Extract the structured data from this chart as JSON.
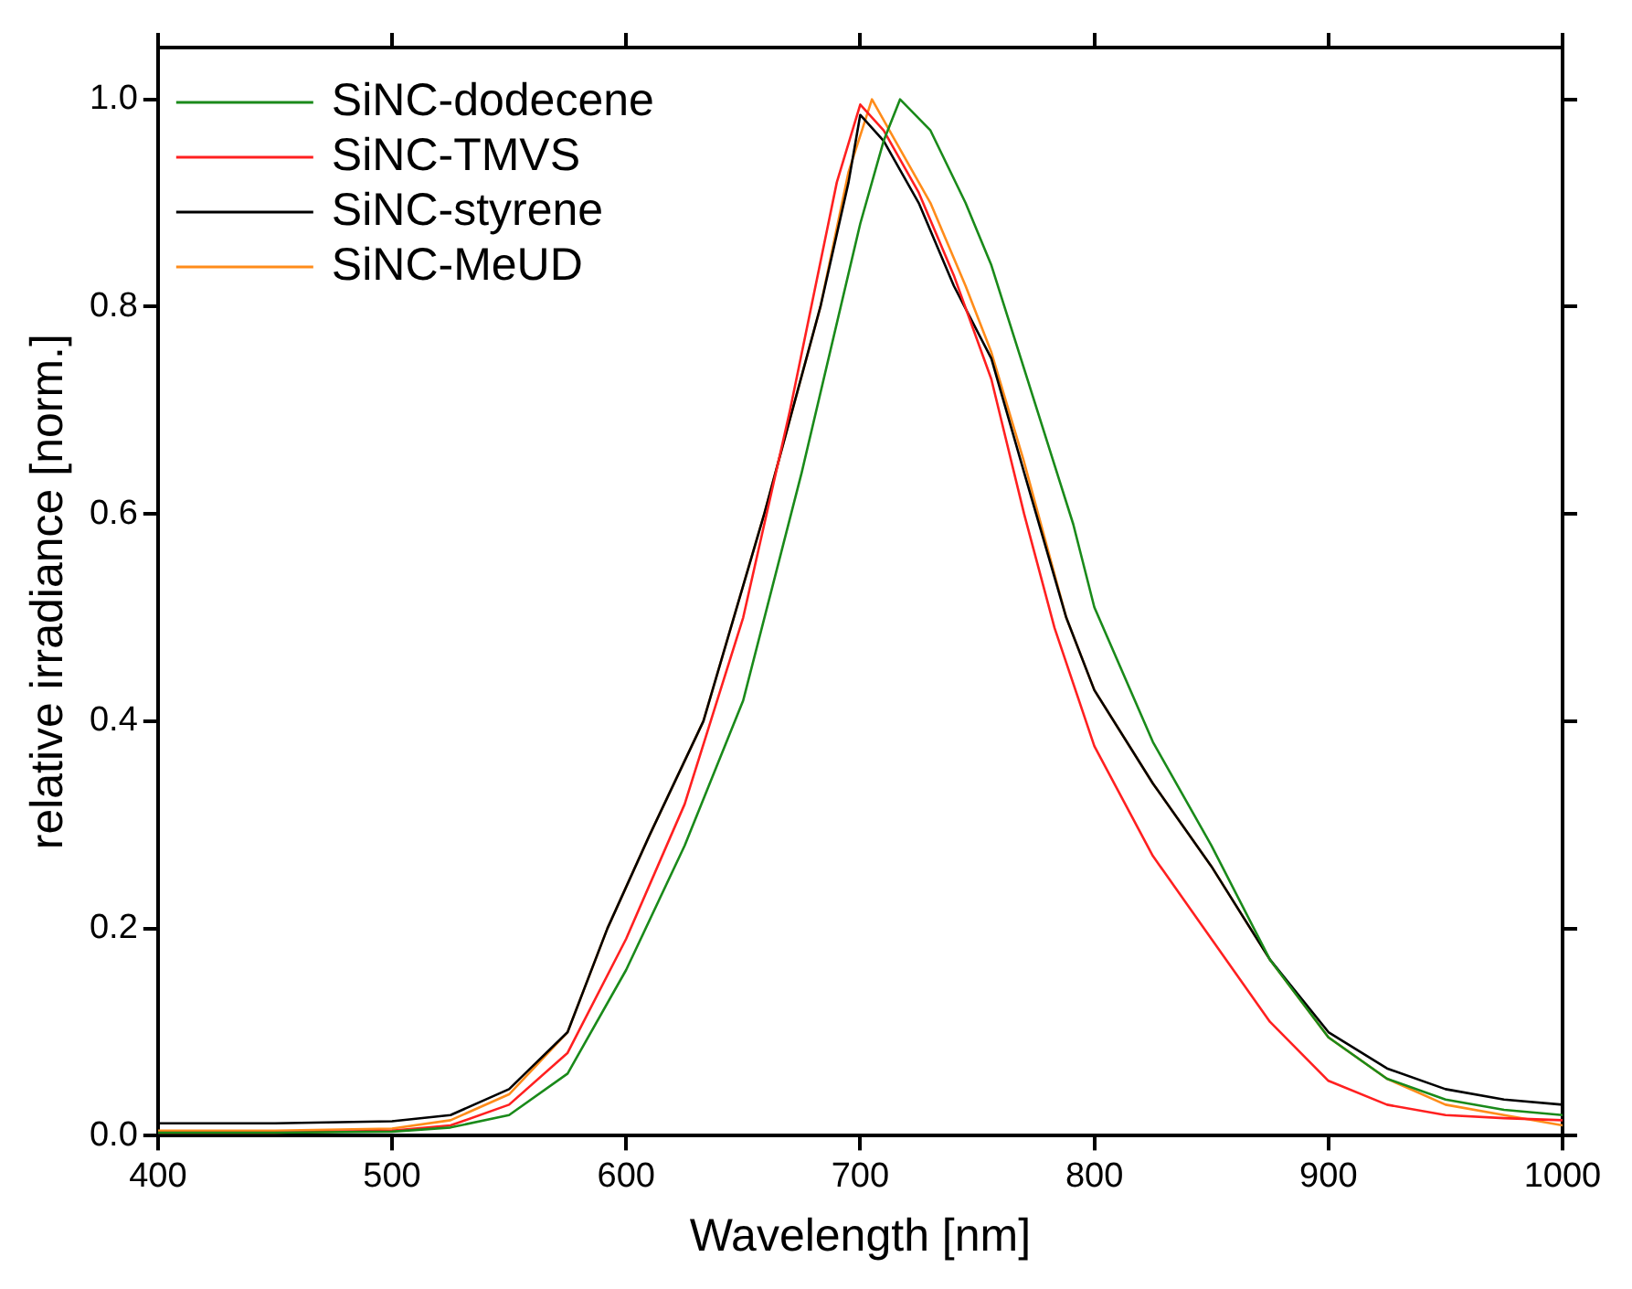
{
  "chart_data": {
    "type": "line",
    "xlabel": "Wavelength [nm]",
    "ylabel": "relative irradiance [norm.]",
    "xlim": [
      400,
      1000
    ],
    "xticks": [
      400,
      500,
      600,
      700,
      800,
      900,
      1000
    ],
    "ylim": [
      0,
      1.05
    ],
    "yticks": [
      {
        "value": 0,
        "label": "0.0"
      },
      {
        "value": 0.2,
        "label": "0.2"
      },
      {
        "value": 0.4,
        "label": "0.4"
      },
      {
        "value": 0.6,
        "label": "0.6"
      },
      {
        "value": 0.8,
        "label": "0.8"
      },
      {
        "value": 1,
        "label": "1.0"
      }
    ],
    "grid": false,
    "legend": "top left",
    "marker": "none",
    "line_style": "solid",
    "series": [
      {
        "name": "SiNC-dodecene",
        "color": "#1a8a1a",
        "x": [
          400,
          450,
          500,
          525,
          550,
          575,
          600,
          625,
          650,
          675,
          700,
          710,
          717,
          730,
          745,
          756,
          770,
          791,
          800,
          825,
          850,
          875,
          900,
          925,
          950,
          975,
          1000
        ],
        "values": [
          0.003,
          0.003,
          0.004,
          0.008,
          0.02,
          0.06,
          0.16,
          0.28,
          0.42,
          0.64,
          0.88,
          0.96,
          1.0,
          0.97,
          0.9,
          0.84,
          0.74,
          0.59,
          0.51,
          0.38,
          0.28,
          0.17,
          0.095,
          0.055,
          0.035,
          0.025,
          0.02
        ]
      },
      {
        "name": "SiNC-TMVS",
        "color": "#ff2020",
        "x": [
          400,
          450,
          500,
          525,
          550,
          575,
          600,
          625,
          650,
          670,
          690,
          700,
          710,
          725,
          740,
          756,
          770,
          783,
          800,
          825,
          850,
          875,
          900,
          925,
          950,
          975,
          1000
        ],
        "values": [
          0.003,
          0.003,
          0.005,
          0.01,
          0.03,
          0.08,
          0.19,
          0.32,
          0.5,
          0.7,
          0.92,
          0.995,
          0.97,
          0.91,
          0.83,
          0.73,
          0.6,
          0.49,
          0.376,
          0.27,
          0.19,
          0.11,
          0.053,
          0.03,
          0.02,
          0.017,
          0.015
        ]
      },
      {
        "name": "SiNC-styrene",
        "color": "#000000",
        "x": [
          400,
          450,
          500,
          525,
          550,
          575,
          592,
          610,
          633,
          659,
          683,
          695,
          700,
          710,
          725,
          740,
          756,
          770,
          788,
          800,
          825,
          850,
          875,
          900,
          925,
          950,
          975,
          1000
        ],
        "values": [
          0.012,
          0.012,
          0.014,
          0.02,
          0.045,
          0.1,
          0.2,
          0.29,
          0.4,
          0.6,
          0.8,
          0.92,
          0.985,
          0.96,
          0.9,
          0.82,
          0.75,
          0.64,
          0.5,
          0.43,
          0.34,
          0.26,
          0.17,
          0.1,
          0.065,
          0.045,
          0.035,
          0.03
        ]
      },
      {
        "name": "SiNC-MeUD",
        "color": "#ff8c1a",
        "x": [
          400,
          450,
          500,
          525,
          550,
          575,
          592,
          610,
          633,
          659,
          683,
          695,
          705,
          715,
          730,
          745,
          756,
          770,
          788,
          800,
          825,
          850,
          875,
          900,
          925,
          950,
          975,
          1000
        ],
        "values": [
          0.005,
          0.005,
          0.007,
          0.015,
          0.04,
          0.1,
          0.2,
          0.29,
          0.4,
          0.6,
          0.8,
          0.93,
          1.0,
          0.96,
          0.9,
          0.82,
          0.756,
          0.65,
          0.5,
          0.43,
          0.34,
          0.26,
          0.17,
          0.095,
          0.055,
          0.03,
          0.02,
          0.01
        ]
      }
    ]
  }
}
